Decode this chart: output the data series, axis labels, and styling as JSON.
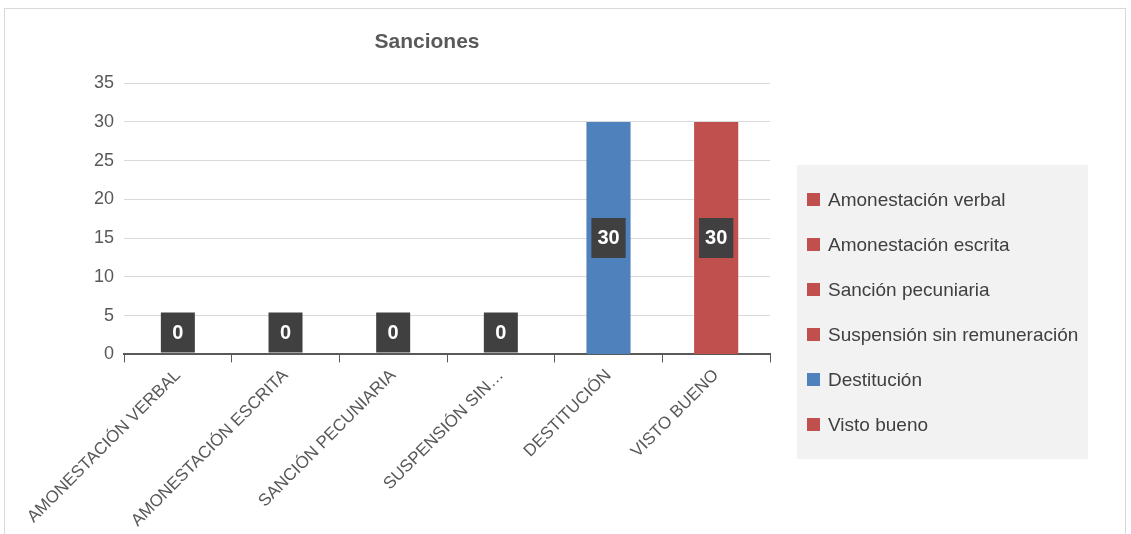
{
  "chart_data": {
    "type": "bar",
    "title": "Sanciones",
    "categories": [
      "AMONESTACIÓN VERBAL",
      "AMONESTACIÓN ESCRITA",
      "SANCIÓN PECUNIARIA",
      "SUSPENSIÓN SIN…",
      "DESTITUCIÓN",
      "VISTO BUENO"
    ],
    "stacked": true,
    "series": [
      {
        "name": "Amonestación verbal",
        "color": "#c0504d",
        "values": [
          0,
          null,
          null,
          null,
          null,
          null
        ]
      },
      {
        "name": "Amonestación escrita",
        "color": "#c0504d",
        "values": [
          null,
          0,
          null,
          null,
          null,
          null
        ]
      },
      {
        "name": "Sanción pecuniaria",
        "color": "#c0504d",
        "values": [
          null,
          null,
          0,
          null,
          null,
          null
        ]
      },
      {
        "name": "Suspensión sin remuneración",
        "color": "#c0504d",
        "values": [
          null,
          null,
          null,
          0,
          null,
          null
        ]
      },
      {
        "name": "Destitución",
        "color": "#4f81bd",
        "values": [
          null,
          null,
          null,
          null,
          30,
          null
        ]
      },
      {
        "name": "Visto bueno",
        "color": "#c0504d",
        "values": [
          null,
          null,
          null,
          null,
          null,
          30
        ]
      }
    ],
    "ylim": [
      0,
      35
    ],
    "yticks": [
      0,
      5,
      10,
      15,
      20,
      25,
      30,
      35
    ],
    "grid": "y",
    "legend": "right",
    "data_labels": true
  }
}
